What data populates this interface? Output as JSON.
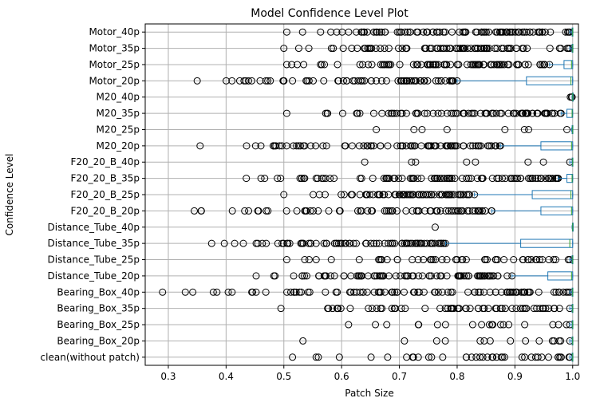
{
  "chart_data": {
    "type": "boxplot",
    "orientation": "horizontal",
    "title": "Model Confidence Level Plot",
    "xlabel": "Patch Size",
    "ylabel": "Confidence Level",
    "xlim": [
      0.26,
      1.01
    ],
    "xticks": [
      0.3,
      0.4,
      0.5,
      0.6,
      0.7,
      0.8,
      0.9,
      1.0
    ],
    "grid": true,
    "colors": {
      "box": "#1f77b4",
      "median": "#2ca02c",
      "grid": "#b0b0b0",
      "flier": "#000000"
    },
    "categories": [
      "Motor_40p",
      "Motor_35p",
      "Motor_25p",
      "Motor_20p",
      "M20_40p",
      "M20_35p",
      "M20_25p",
      "M20_20p",
      "F20_20_B_40p",
      "F20_20_B_35p",
      "F20_20_B_25p",
      "F20_20_B_20p",
      "Distance_Tube_40p",
      "Distance_Tube_35p",
      "Distance_Tube_25p",
      "Distance_Tube_20p",
      "Bearing_Box_40p",
      "Bearing_Box_35p",
      "Bearing_Box_25p",
      "Bearing_Box_20p",
      "clean(without patch)"
    ],
    "boxes": [
      {
        "name": "Motor_40p",
        "whisker_low": 0.995,
        "q1": 0.999,
        "median": 1.0,
        "q3": 1.0,
        "whisker_high": 1.0,
        "flier_range": [
          0.505,
          0.995
        ],
        "flier_count": 90
      },
      {
        "name": "Motor_35p",
        "whisker_low": 0.995,
        "q1": 0.999,
        "median": 1.0,
        "q3": 1.0,
        "whisker_high": 1.0,
        "flier_range": [
          0.5,
          0.995
        ],
        "flier_count": 80
      },
      {
        "name": "Motor_25p",
        "whisker_low": 0.96,
        "q1": 0.985,
        "median": 0.998,
        "q3": 1.0,
        "whisker_high": 1.0,
        "flier_range": [
          0.505,
          0.96
        ],
        "flier_count": 90
      },
      {
        "name": "Motor_20p",
        "whisker_low": 0.8,
        "q1": 0.92,
        "median": 0.997,
        "q3": 1.0,
        "whisker_high": 1.0,
        "flier_range": [
          0.35,
          0.8
        ],
        "flier_count": 70
      },
      {
        "name": "M20_40p",
        "whisker_low": 0.999,
        "q1": 0.9995,
        "median": 1.0,
        "q3": 1.0,
        "whisker_high": 1.0,
        "flier_range": [
          0.996,
          0.999
        ],
        "flier_count": 3
      },
      {
        "name": "M20_35p",
        "whisker_low": 0.98,
        "q1": 0.99,
        "median": 0.999,
        "q3": 1.0,
        "whisker_high": 1.0,
        "flier_range": [
          0.505,
          0.98
        ],
        "flier_count": 80
      },
      {
        "name": "M20_25p",
        "whisker_low": 0.998,
        "q1": 0.999,
        "median": 1.0,
        "q3": 1.0,
        "whisker_high": 1.0,
        "flier_range": [
          0.66,
          0.99
        ],
        "flier_count": 8
      },
      {
        "name": "M20_20p",
        "whisker_low": 0.875,
        "q1": 0.945,
        "median": 0.998,
        "q3": 1.0,
        "whisker_high": 1.0,
        "flier_range": [
          0.355,
          0.875
        ],
        "flier_count": 80
      },
      {
        "name": "F20_20_B_40p",
        "whisker_low": 0.995,
        "q1": 0.999,
        "median": 1.0,
        "q3": 1.0,
        "whisker_high": 1.0,
        "flier_range": [
          0.64,
          0.995
        ],
        "flier_count": 8
      },
      {
        "name": "F20_20_B_35p",
        "whisker_low": 0.975,
        "q1": 0.99,
        "median": 0.999,
        "q3": 1.0,
        "whisker_high": 1.0,
        "flier_range": [
          0.435,
          0.975
        ],
        "flier_count": 90
      },
      {
        "name": "F20_20_B_25p",
        "whisker_low": 0.83,
        "q1": 0.93,
        "median": 0.997,
        "q3": 1.0,
        "whisker_high": 1.0,
        "flier_range": [
          0.5,
          0.83
        ],
        "flier_count": 70
      },
      {
        "name": "F20_20_B_20p",
        "whisker_low": 0.86,
        "q1": 0.945,
        "median": 0.998,
        "q3": 1.0,
        "whisker_high": 1.0,
        "flier_range": [
          0.345,
          0.86
        ],
        "flier_count": 70
      },
      {
        "name": "Distance_Tube_40p",
        "whisker_low": 0.999,
        "q1": 0.9995,
        "median": 1.0,
        "q3": 1.0,
        "whisker_high": 1.0,
        "flier_range": [
          0.762,
          0.762
        ],
        "flier_count": 1
      },
      {
        "name": "Distance_Tube_35p",
        "whisker_low": 0.78,
        "q1": 0.91,
        "median": 0.995,
        "q3": 1.0,
        "whisker_high": 1.0,
        "flier_range": [
          0.375,
          0.78
        ],
        "flier_count": 80
      },
      {
        "name": "Distance_Tube_25p",
        "whisker_low": 0.995,
        "q1": 0.999,
        "median": 1.0,
        "q3": 1.0,
        "whisker_high": 1.0,
        "flier_range": [
          0.505,
          0.995
        ],
        "flier_count": 50
      },
      {
        "name": "Distance_Tube_20p",
        "whisker_low": 0.895,
        "q1": 0.957,
        "median": 0.998,
        "q3": 1.0,
        "whisker_high": 1.0,
        "flier_range": [
          0.452,
          0.895
        ],
        "flier_count": 80
      },
      {
        "name": "Bearing_Box_40p",
        "whisker_low": 0.995,
        "q1": 0.999,
        "median": 1.0,
        "q3": 1.0,
        "whisker_high": 1.0,
        "flier_range": [
          0.29,
          0.995
        ],
        "flier_count": 90
      },
      {
        "name": "Bearing_Box_35p",
        "whisker_low": 0.995,
        "q1": 0.999,
        "median": 1.0,
        "q3": 1.0,
        "whisker_high": 1.0,
        "flier_range": [
          0.495,
          0.995
        ],
        "flier_count": 60
      },
      {
        "name": "Bearing_Box_25p",
        "whisker_low": 0.995,
        "q1": 0.999,
        "median": 1.0,
        "q3": 1.0,
        "whisker_high": 1.0,
        "flier_range": [
          0.612,
          0.995
        ],
        "flier_count": 20
      },
      {
        "name": "Bearing_Box_20p",
        "whisker_low": 0.995,
        "q1": 0.999,
        "median": 1.0,
        "q3": 1.0,
        "whisker_high": 1.0,
        "flier_range": [
          0.533,
          0.995
        ],
        "flier_count": 15
      },
      {
        "name": "clean(without patch)",
        "whisker_low": 0.995,
        "q1": 0.999,
        "median": 1.0,
        "q3": 1.0,
        "whisker_high": 1.0,
        "flier_range": [
          0.515,
          0.995
        ],
        "flier_count": 40
      }
    ]
  }
}
